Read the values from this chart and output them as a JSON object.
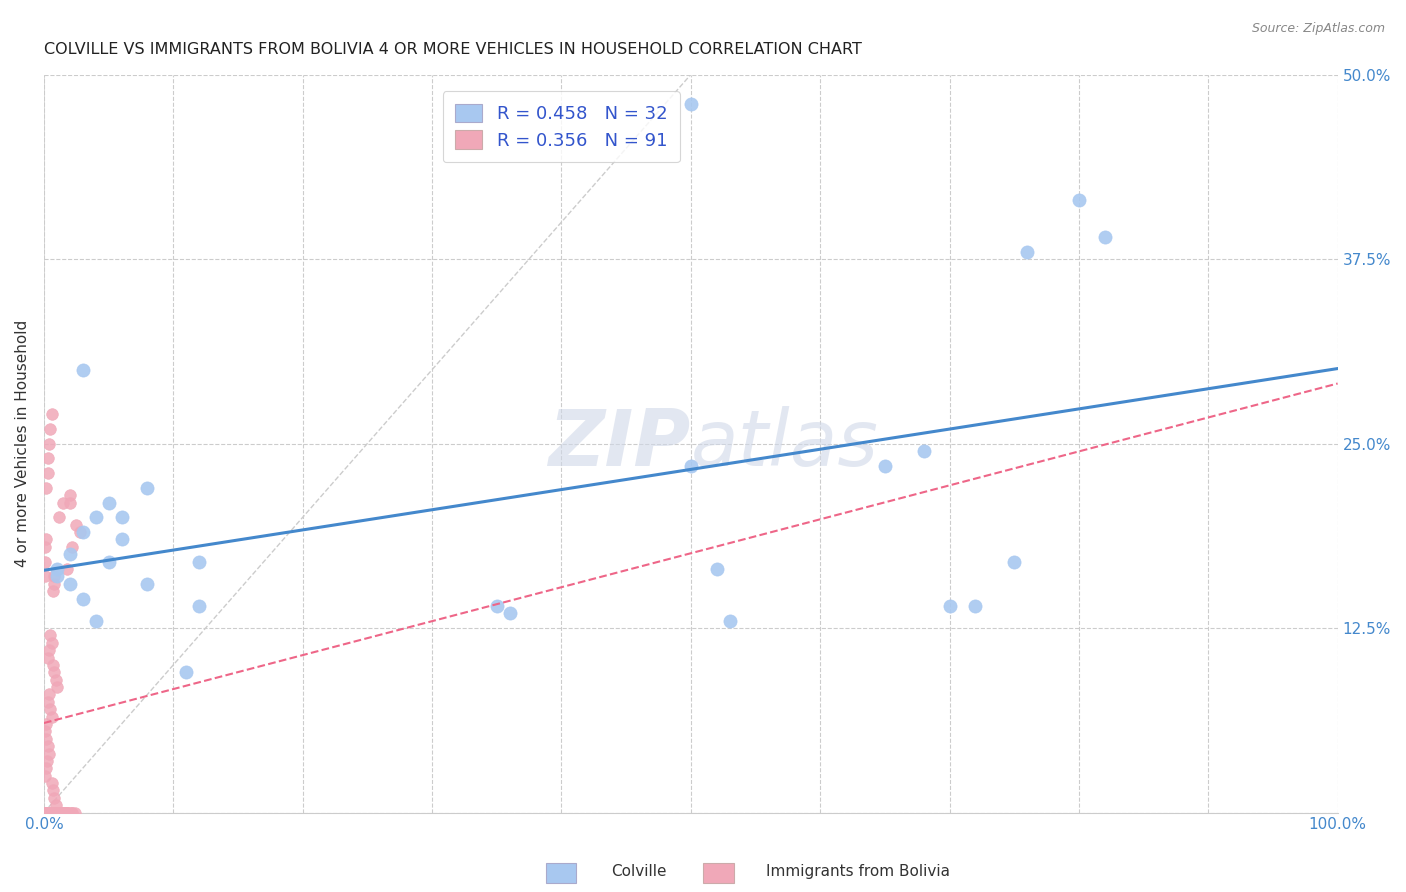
{
  "title": "COLVILLE VS IMMIGRANTS FROM BOLIVIA 4 OR MORE VEHICLES IN HOUSEHOLD CORRELATION CHART",
  "source": "Source: ZipAtlas.com",
  "ylabel": "4 or more Vehicles in Household",
  "xlim": [
    0,
    1.0
  ],
  "ylim": [
    0,
    0.5
  ],
  "xticks": [
    0.0,
    0.1,
    0.2,
    0.3,
    0.4,
    0.5,
    0.6,
    0.7,
    0.8,
    0.9,
    1.0
  ],
  "xticklabels": [
    "0.0%",
    "",
    "",
    "",
    "",
    "",
    "",
    "",
    "",
    "",
    "100.0%"
  ],
  "yticks": [
    0.0,
    0.125,
    0.25,
    0.375,
    0.5
  ],
  "yticklabels": [
    "",
    "12.5%",
    "25.0%",
    "37.5%",
    "50.0%"
  ],
  "colville_R": 0.458,
  "colville_N": 32,
  "bolivia_R": 0.356,
  "bolivia_N": 91,
  "colville_color": "#a8c8f0",
  "bolivia_color": "#f0a8b8",
  "colville_line_color": "#4488cc",
  "bolivia_line_color": "#ee6688",
  "legend_text_color": "#3355cc",
  "colville_scatter_x": [
    0.5,
    0.03,
    0.05,
    0.04,
    0.03,
    0.02,
    0.01,
    0.01,
    0.02,
    0.06,
    0.06,
    0.05,
    0.08,
    0.08,
    0.03,
    0.04,
    0.12,
    0.12,
    0.11,
    0.35,
    0.36,
    0.5,
    0.65,
    0.7,
    0.72,
    0.76,
    0.8,
    0.82,
    0.68,
    0.75,
    0.52,
    0.53
  ],
  "colville_scatter_y": [
    0.48,
    0.3,
    0.21,
    0.2,
    0.19,
    0.175,
    0.165,
    0.16,
    0.155,
    0.2,
    0.185,
    0.17,
    0.22,
    0.155,
    0.145,
    0.13,
    0.17,
    0.14,
    0.095,
    0.14,
    0.135,
    0.235,
    0.235,
    0.14,
    0.14,
    0.38,
    0.415,
    0.39,
    0.245,
    0.17,
    0.165,
    0.13
  ],
  "bolivia_scatter_x": [
    0.006,
    0.005,
    0.004,
    0.003,
    0.003,
    0.002,
    0.002,
    0.001,
    0.001,
    0.001,
    0.008,
    0.008,
    0.007,
    0.012,
    0.015,
    0.02,
    0.02,
    0.018,
    0.022,
    0.025,
    0.028,
    0.005,
    0.006,
    0.004,
    0.003,
    0.007,
    0.008,
    0.009,
    0.01,
    0.004,
    0.003,
    0.005,
    0.006,
    0.002,
    0.001,
    0.0015,
    0.003,
    0.004,
    0.0025,
    0.0018,
    0.0012,
    0.006,
    0.007,
    0.008,
    0.009,
    0.01,
    0.004,
    0.005,
    0.003,
    0.002,
    0.003,
    0.004,
    0.005,
    0.002,
    0.001,
    0.0015,
    0.002,
    0.003,
    0.001,
    0.002,
    0.003,
    0.004,
    0.005,
    0.006,
    0.007,
    0.008,
    0.009,
    0.01,
    0.011,
    0.012,
    0.013,
    0.014,
    0.015,
    0.016,
    0.017,
    0.018,
    0.012,
    0.014,
    0.019,
    0.022,
    0.02,
    0.018,
    0.015,
    0.016,
    0.012,
    0.01,
    0.008,
    0.006,
    0.004,
    0.022,
    0.024
  ],
  "bolivia_scatter_y": [
    0.27,
    0.26,
    0.25,
    0.24,
    0.23,
    0.22,
    0.185,
    0.18,
    0.17,
    0.16,
    0.16,
    0.155,
    0.15,
    0.2,
    0.21,
    0.215,
    0.21,
    0.165,
    0.18,
    0.195,
    0.19,
    0.12,
    0.115,
    0.11,
    0.105,
    0.1,
    0.095,
    0.09,
    0.085,
    0.08,
    0.075,
    0.07,
    0.065,
    0.06,
    0.055,
    0.05,
    0.045,
    0.04,
    0.035,
    0.03,
    0.025,
    0.02,
    0.015,
    0.01,
    0.005,
    0.0,
    0.0,
    0.0,
    0.0,
    0.0,
    0.0,
    0.0,
    0.0,
    0.0,
    0.0,
    0.0,
    0.0,
    0.0,
    0.0,
    0.0,
    0.0,
    0.0,
    0.0,
    0.0,
    0.0,
    0.0,
    0.0,
    0.0,
    0.0,
    0.0,
    0.0,
    0.0,
    0.0,
    0.0,
    0.0,
    0.0,
    0.0,
    0.0,
    0.0,
    0.0,
    0.0,
    0.0,
    0.0,
    0.0,
    0.0,
    0.0,
    0.0,
    0.0,
    0.0,
    0.0,
    0.0
  ]
}
